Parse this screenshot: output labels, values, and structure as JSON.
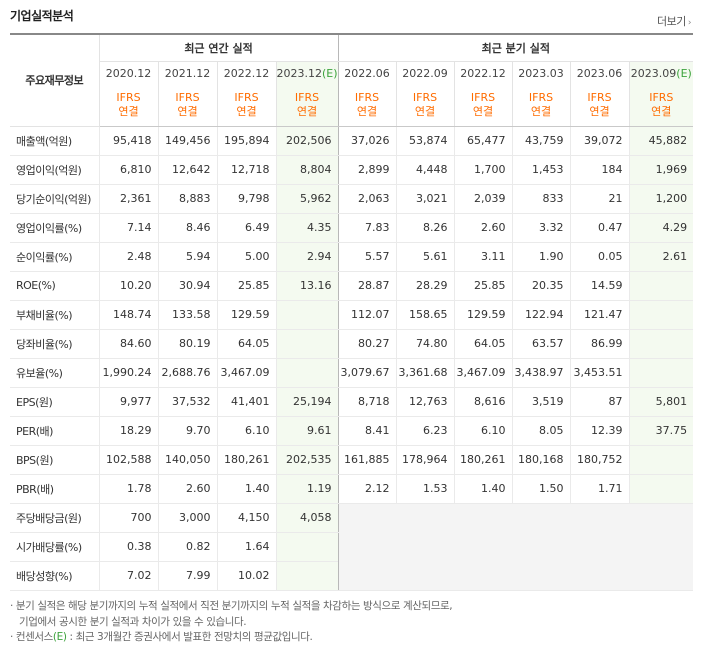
{
  "header": {
    "title": "기업실적분석",
    "more_label": "더보기",
    "more_arrow": "›"
  },
  "table": {
    "row_head_label": "주요재무정보",
    "annual_group_label": "최근 연간 실적",
    "quarter_group_label": "최근 분기 실적",
    "annual_periods": [
      "2020.12",
      "2021.12",
      "2022.12",
      "2023.12"
    ],
    "annual_est_suffix": "(E)",
    "quarter_periods": [
      "2022.06",
      "2022.09",
      "2022.12",
      "2023.03",
      "2023.06",
      "2023.09"
    ],
    "quarter_est_suffix": "(E)",
    "std_line1": "IFRS",
    "std_line2": "연결",
    "groups": [
      [
        {
          "label": "매출액(억원)",
          "annual": [
            "95,418",
            "149,456",
            "195,894",
            "202,506"
          ],
          "quarter": [
            "37,026",
            "53,874",
            "65,477",
            "43,759",
            "39,072",
            "45,882"
          ]
        },
        {
          "label": "영업이익(억원)",
          "annual": [
            "6,810",
            "12,642",
            "12,718",
            "8,804"
          ],
          "quarter": [
            "2,899",
            "4,448",
            "1,700",
            "1,453",
            "184",
            "1,969"
          ]
        },
        {
          "label": "당기순이익(억원)",
          "annual": [
            "2,361",
            "8,883",
            "9,798",
            "5,962"
          ],
          "quarter": [
            "2,063",
            "3,021",
            "2,039",
            "833",
            "21",
            "1,200"
          ]
        }
      ],
      [
        {
          "label": "영업이익률(%)",
          "annual": [
            "7.14",
            "8.46",
            "6.49",
            "4.35"
          ],
          "quarter": [
            "7.83",
            "8.26",
            "2.60",
            "3.32",
            "0.47",
            "4.29"
          ]
        },
        {
          "label": "순이익률(%)",
          "annual": [
            "2.48",
            "5.94",
            "5.00",
            "2.94"
          ],
          "quarter": [
            "5.57",
            "5.61",
            "3.11",
            "1.90",
            "0.05",
            "2.61"
          ]
        },
        {
          "label": "ROE(%)",
          "annual": [
            "10.20",
            "30.94",
            "25.85",
            "13.16"
          ],
          "quarter": [
            "28.87",
            "28.29",
            "25.85",
            "20.35",
            "14.59",
            ""
          ]
        }
      ],
      [
        {
          "label": "부채비율(%)",
          "annual": [
            "148.74",
            "133.58",
            "129.59",
            ""
          ],
          "quarter": [
            "112.07",
            "158.65",
            "129.59",
            "122.94",
            "121.47",
            ""
          ]
        },
        {
          "label": "당좌비율(%)",
          "annual": [
            "84.60",
            "80.19",
            "64.05",
            ""
          ],
          "quarter": [
            "80.27",
            "74.80",
            "64.05",
            "63.57",
            "86.99",
            ""
          ]
        },
        {
          "label": "유보율(%)",
          "annual": [
            "1,990.24",
            "2,688.76",
            "3,467.09",
            ""
          ],
          "quarter": [
            "3,079.67",
            "3,361.68",
            "3,467.09",
            "3,438.97",
            "3,453.51",
            ""
          ]
        }
      ],
      [
        {
          "label": "EPS(원)",
          "annual": [
            "9,977",
            "37,532",
            "41,401",
            "25,194"
          ],
          "quarter": [
            "8,718",
            "12,763",
            "8,616",
            "3,519",
            "87",
            "5,801"
          ]
        },
        {
          "label": "PER(배)",
          "annual": [
            "18.29",
            "9.70",
            "6.10",
            "9.61"
          ],
          "quarter": [
            "8.41",
            "6.23",
            "6.10",
            "8.05",
            "12.39",
            "37.75"
          ]
        },
        {
          "label": "BPS(원)",
          "annual": [
            "102,588",
            "140,050",
            "180,261",
            "202,535"
          ],
          "quarter": [
            "161,885",
            "178,964",
            "180,261",
            "180,168",
            "180,752",
            ""
          ]
        },
        {
          "label": "PBR(배)",
          "annual": [
            "1.78",
            "2.60",
            "1.40",
            "1.19"
          ],
          "quarter": [
            "2.12",
            "1.53",
            "1.40",
            "1.50",
            "1.71",
            ""
          ]
        }
      ],
      [
        {
          "label": "주당배당금(원)",
          "annual": [
            "700",
            "3,000",
            "4,150",
            "4,058"
          ],
          "quarter": null
        },
        {
          "label": "시가배당률(%)",
          "annual": [
            "0.38",
            "0.82",
            "1.64",
            ""
          ],
          "quarter": null
        },
        {
          "label": "배당성향(%)",
          "annual": [
            "7.02",
            "7.99",
            "10.02",
            ""
          ],
          "quarter": null
        }
      ]
    ]
  },
  "notes": {
    "line1": "· 분기 실적은 해당 분기까지의 누적 실적에서 직전 분기까지의 누적 실적을 차감하는 방식으로 계산되므로,",
    "line2": "  기업에서 공시한 분기 실적과 차이가 있을 수 있습니다.",
    "line3_prefix": "· 컨센서스",
    "line3_e": "(E)",
    "line3_suffix": " : 최근 3개월간 증권사에서 발표한 전망치의 평균값입니다."
  }
}
